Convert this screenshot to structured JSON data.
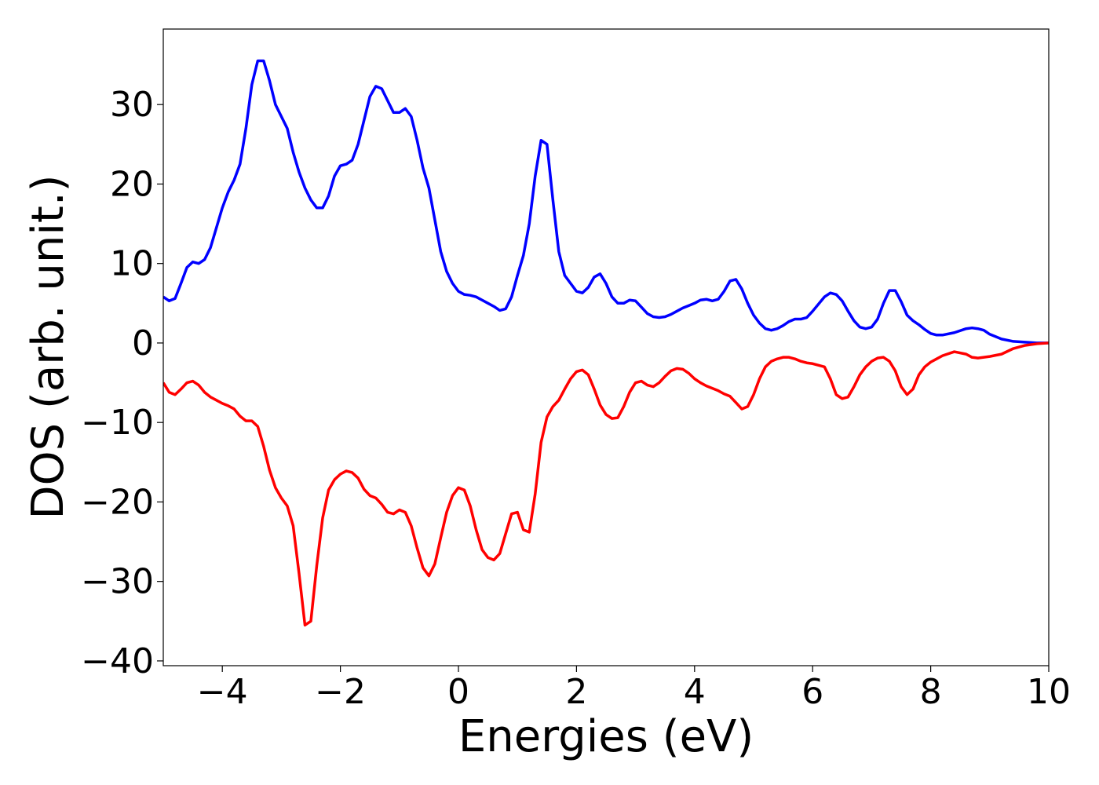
{
  "chart_data": {
    "type": "line",
    "x_label": "Energies (eV)",
    "y_label": "DOS (arb. unit.)",
    "xlim": [
      -5,
      10
    ],
    "ylim": [
      -40.6,
      39.5
    ],
    "xticks": [
      {
        "value": -4,
        "label": "−4"
      },
      {
        "value": -2,
        "label": "−2"
      },
      0,
      2,
      4,
      6,
      8,
      10
    ],
    "yticks": [
      {
        "value": -40,
        "label": "−40"
      },
      {
        "value": -30,
        "label": "−30"
      },
      {
        "value": -20,
        "label": "−20"
      },
      {
        "value": -10,
        "label": "−10"
      },
      0,
      10,
      20,
      30
    ],
    "grid": false,
    "x": [
      -5,
      -4.9,
      -4.8,
      -4.7,
      -4.6,
      -4.5,
      -4.4,
      -4.3,
      -4.2,
      -4.1,
      -4,
      -3.9,
      -3.8,
      -3.7,
      -3.6,
      -3.5,
      -3.4,
      -3.3,
      -3.2,
      -3.1,
      -3,
      -2.9,
      -2.8,
      -2.7,
      -2.6,
      -2.5,
      -2.4,
      -2.3,
      -2.2,
      -2.1,
      -2,
      -1.9,
      -1.8,
      -1.7,
      -1.6,
      -1.5,
      -1.4,
      -1.3,
      -1.2,
      -1.1,
      -1,
      -0.9,
      -0.8,
      -0.7,
      -0.6,
      -0.5,
      -0.4,
      -0.3,
      -0.2,
      -0.1,
      0,
      0.1,
      0.2,
      0.3,
      0.4,
      0.5,
      0.6,
      0.7,
      0.8,
      0.9,
      1,
      1.1,
      1.2,
      1.3,
      1.4,
      1.5,
      1.6,
      1.7,
      1.8,
      1.9,
      2,
      2.1,
      2.2,
      2.3,
      2.4,
      2.5,
      2.6,
      2.7,
      2.8,
      2.9,
      3,
      3.1,
      3.2,
      3.3,
      3.4,
      3.5,
      3.6,
      3.7,
      3.8,
      3.9,
      4,
      4.1,
      4.2,
      4.3,
      4.4,
      4.5,
      4.6,
      4.7,
      4.8,
      4.9,
      5,
      5.1,
      5.2,
      5.3,
      5.4,
      5.5,
      5.6,
      5.7,
      5.8,
      5.9,
      6,
      6.2,
      6.3,
      6.4,
      6.5,
      6.6,
      6.7,
      6.8,
      6.9,
      7,
      7.1,
      7.2,
      7.3,
      7.4,
      7.5,
      7.6,
      7.7,
      7.8,
      7.9,
      8,
      8.1,
      8.2,
      8.4,
      8.6,
      8.7,
      8.8,
      8.9,
      9,
      9.2,
      9.4,
      9.6,
      9.8,
      10
    ],
    "series": [
      {
        "color": "#0000ff",
        "values": [
          5.8,
          5.3,
          5.6,
          7.5,
          9.5,
          10.2,
          10,
          10.5,
          12,
          14.5,
          17,
          19,
          20.5,
          22.5,
          27,
          32.5,
          35.5,
          35.5,
          33,
          30,
          28.5,
          27,
          24,
          21.5,
          19.5,
          18,
          17,
          17,
          18.5,
          21,
          22.3,
          22.5,
          23,
          25,
          28,
          31,
          32.3,
          32,
          30.5,
          29,
          29,
          29.5,
          28.5,
          25.5,
          22,
          19.5,
          15.5,
          11.5,
          9,
          7.5,
          6.5,
          6.1,
          6,
          5.8,
          5.4,
          5,
          4.6,
          4.1,
          4.3,
          5.8,
          8.5,
          11,
          15,
          21,
          25.5,
          25,
          18,
          11.5,
          8.5,
          7.5,
          6.5,
          6.3,
          7,
          8.3,
          8.7,
          7.5,
          5.8,
          5,
          5,
          5.4,
          5.3,
          4.5,
          3.7,
          3.3,
          3.2,
          3.3,
          3.6,
          4,
          4.4,
          4.7,
          5,
          5.4,
          5.5,
          5.3,
          5.5,
          6.5,
          7.8,
          8,
          6.8,
          5,
          3.5,
          2.5,
          1.8,
          1.6,
          1.8,
          2.2,
          2.7,
          3,
          3,
          3.2,
          4,
          5.8,
          6.3,
          6.1,
          5.3,
          4,
          2.8,
          2,
          1.8,
          2,
          3,
          5,
          6.6,
          6.6,
          5.2,
          3.5,
          2.8,
          2.3,
          1.7,
          1.2,
          1,
          1,
          1.3,
          1.8,
          1.9,
          1.8,
          1.6,
          1.1,
          0.5,
          0.2,
          0.1,
          0,
          0
        ]
      },
      {
        "color": "#ff0000",
        "values": [
          -5,
          -6.2,
          -6.5,
          -5.8,
          -5,
          -4.8,
          -5.3,
          -6.2,
          -6.8,
          -7.2,
          -7.6,
          -7.9,
          -8.3,
          -9.2,
          -9.8,
          -9.8,
          -10.5,
          -13,
          -16,
          -18.2,
          -19.5,
          -20.5,
          -23,
          -29,
          -35.5,
          -35,
          -28,
          -22,
          -18.5,
          -17.2,
          -16.5,
          -16.1,
          -16.3,
          -17,
          -18.4,
          -19.2,
          -19.5,
          -20.3,
          -21.3,
          -21.5,
          -21,
          -21.3,
          -23,
          -25.8,
          -28.3,
          -29.3,
          -27.8,
          -24.5,
          -21.3,
          -19.2,
          -18.2,
          -18.5,
          -20.5,
          -23.5,
          -26,
          -27,
          -27.3,
          -26.5,
          -24,
          -21.5,
          -21.3,
          -23.5,
          -23.8,
          -19,
          -12.5,
          -9.3,
          -8,
          -7.2,
          -5.8,
          -4.5,
          -3.6,
          -3.4,
          -4,
          -5.8,
          -7.8,
          -9,
          -9.5,
          -9.4,
          -8,
          -6.2,
          -5,
          -4.8,
          -5.3,
          -5.5,
          -5,
          -4.2,
          -3.5,
          -3.2,
          -3.3,
          -3.8,
          -4.5,
          -5,
          -5.4,
          -5.7,
          -6,
          -6.4,
          -6.7,
          -7.5,
          -8.3,
          -8,
          -6.5,
          -4.5,
          -3,
          -2.3,
          -2,
          -1.8,
          -1.8,
          -2,
          -2.3,
          -2.5,
          -2.6,
          -3,
          -4.5,
          -6.5,
          -7,
          -6.8,
          -5.5,
          -4,
          -3,
          -2.3,
          -1.9,
          -1.8,
          -2.3,
          -3.5,
          -5.5,
          -6.5,
          -5.8,
          -4,
          -3,
          -2.4,
          -2,
          -1.6,
          -1.1,
          -1.4,
          -1.8,
          -1.9,
          -1.8,
          -1.7,
          -1.4,
          -0.7,
          -0.3,
          -0.1,
          0
        ]
      }
    ]
  }
}
